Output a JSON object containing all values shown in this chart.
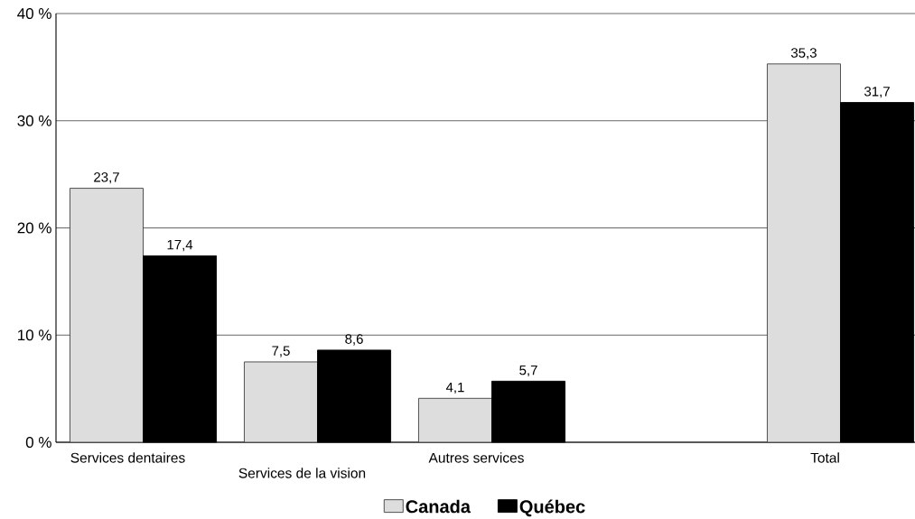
{
  "chart_data": {
    "type": "bar",
    "categories": [
      "Services dentaires",
      "Services de la vision",
      "Autres services",
      null,
      "Total"
    ],
    "series": [
      {
        "name": "Canada",
        "color": "#dddddd",
        "values": [
          23.7,
          7.5,
          4.1,
          null,
          35.3
        ],
        "value_labels": [
          "23,7",
          "7,5",
          "4,1",
          null,
          "35,3"
        ]
      },
      {
        "name": "Québec",
        "color": "#000000",
        "values": [
          17.4,
          8.6,
          5.7,
          null,
          31.7
        ],
        "value_labels": [
          "17,4",
          "8,6",
          "5,7",
          null,
          "31,7"
        ]
      }
    ],
    "ylim": [
      0,
      40
    ],
    "yticks": [
      {
        "value": 0,
        "label": "0 %"
      },
      {
        "value": 10,
        "label": "10 %"
      },
      {
        "value": 20,
        "label": "20 %"
      },
      {
        "value": 30,
        "label": "30 %"
      },
      {
        "value": 40,
        "label": "40 %"
      }
    ],
    "grid": "y",
    "legend": "bottom"
  }
}
